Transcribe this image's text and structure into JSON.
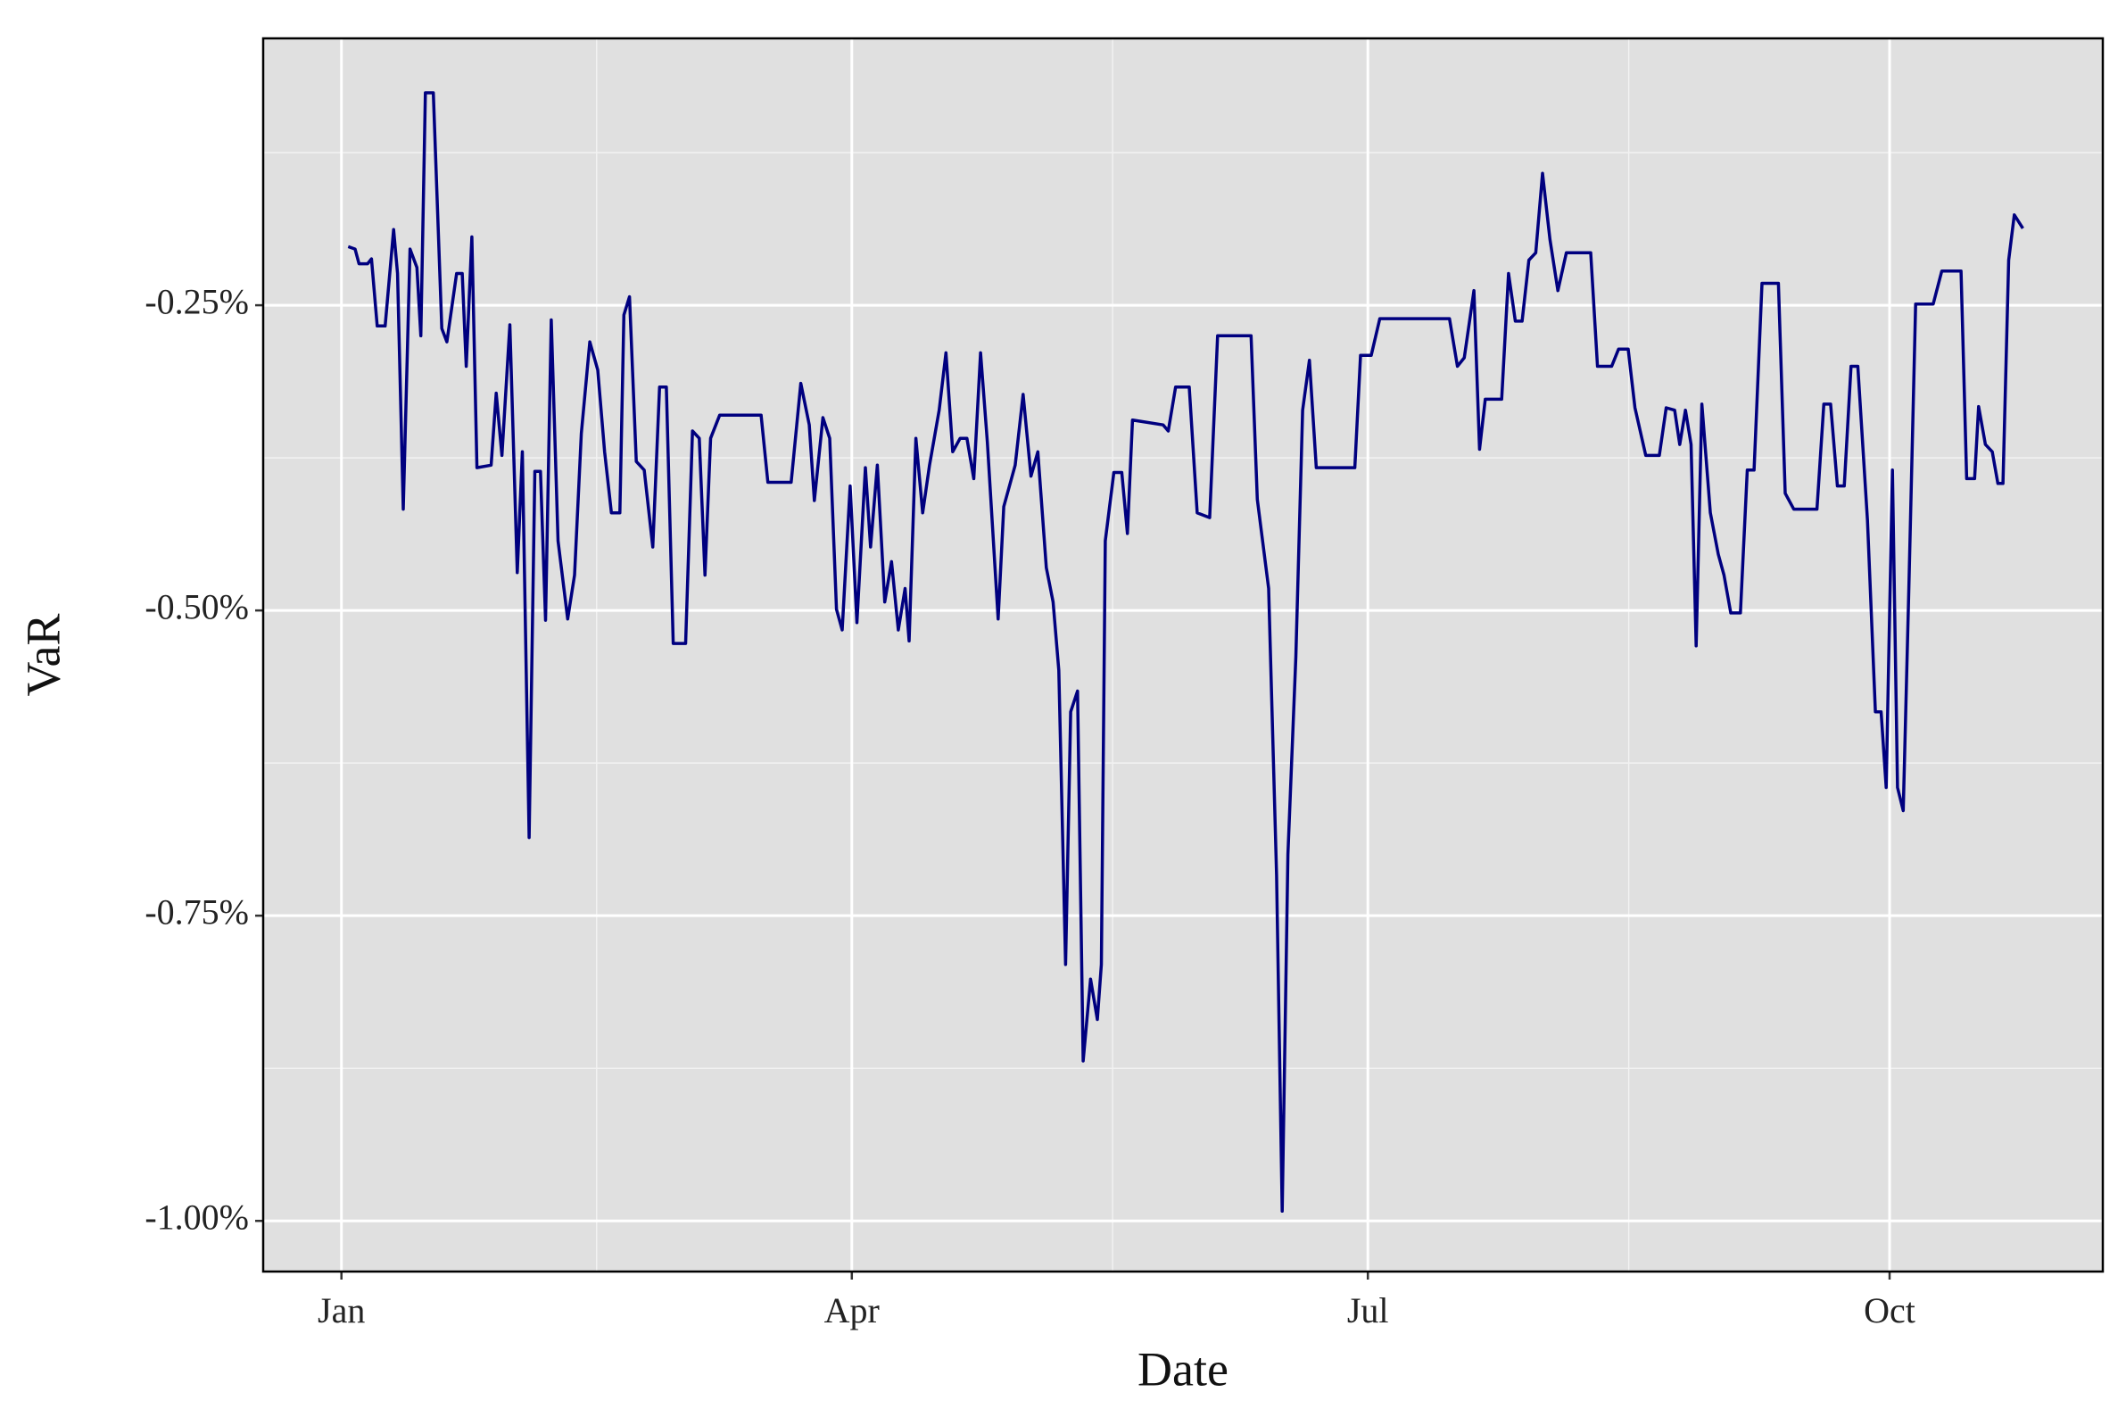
{
  "chart_data": {
    "type": "line",
    "xlabel": "Date",
    "ylabel": "VaR",
    "color": "#00007f",
    "background": "#e0e0e0",
    "grid": true,
    "xlim": [
      -13.8,
      310.6
    ],
    "xticks": [
      {
        "value": 0,
        "label": "Jan"
      },
      {
        "value": 90,
        "label": "Apr"
      },
      {
        "value": 181,
        "label": "Jul"
      },
      {
        "value": 273,
        "label": "Oct"
      }
    ],
    "xminorticks": [
      45,
      136,
      227
    ],
    "ylim": [
      -1.0415,
      -0.0314
    ],
    "yticks": [
      {
        "value": -1.0,
        "label": "-1.00%"
      },
      {
        "value": -0.75,
        "label": "-0.75%"
      },
      {
        "value": -0.5,
        "label": "-0.50%"
      },
      {
        "value": -0.25,
        "label": "-0.25%"
      }
    ],
    "yminorticks": [
      -0.875,
      -0.625,
      -0.375,
      -0.125
    ],
    "x": [
      1.2,
      2.4,
      3.1,
      4.6,
      5.3,
      6.3,
      7.7,
      9.2,
      9.9,
      10.9,
      12.1,
      13.3,
      14.0,
      14.8,
      16.2,
      17.7,
      18.6,
      20.3,
      21.3,
      22.0,
      23.0,
      23.9,
      26.4,
      27.3,
      28.3,
      29.7,
      31.0,
      31.9,
      33.1,
      34.1,
      35.1,
      36.0,
      37.0,
      38.2,
      39.9,
      41.1,
      42.3,
      43.8,
      45.2,
      46.4,
      47.6,
      49.1,
      49.8,
      50.8,
      52.0,
      53.4,
      54.9,
      56.1,
      57.3,
      58.5,
      60.7,
      61.9,
      63.1,
      64.1,
      65.1,
      66.7,
      74.0,
      75.2,
      79.3,
      81.0,
      82.5,
      83.4,
      84.9,
      86.1,
      87.3,
      88.3,
      89.7,
      90.9,
      92.4,
      93.3,
      94.5,
      95.8,
      97.0,
      98.2,
      99.4,
      100.1,
      101.3,
      102.5,
      103.7,
      105.4,
      106.6,
      107.8,
      109.1,
      110.3,
      111.5,
      112.7,
      113.9,
      115.8,
      116.8,
      118.8,
      120.2,
      121.6,
      122.8,
      124.3,
      125.5,
      126.5,
      127.7,
      128.6,
      129.8,
      130.8,
      132.1,
      133.3,
      134.0,
      134.7,
      136.2,
      137.6,
      138.6,
      139.5,
      144.9,
      145.8,
      147.1,
      149.5,
      150.9,
      153.1,
      154.5,
      160.4,
      161.5,
      163.5,
      164.9,
      165.9,
      166.9,
      168.3,
      169.5,
      170.7,
      171.9,
      178.7,
      179.7,
      181.6,
      183.1,
      195.4,
      196.8,
      198.0,
      199.7,
      200.7,
      201.7,
      204.6,
      205.8,
      207.0,
      208.2,
      209.4,
      210.6,
      211.8,
      213.1,
      214.5,
      216.0,
      220.3,
      221.5,
      224.0,
      225.2,
      226.9,
      228.1,
      230.0,
      232.4,
      233.6,
      235.1,
      236.0,
      237.0,
      238.0,
      238.9,
      239.9,
      241.4,
      242.8,
      243.8,
      245.0,
      246.7,
      247.9,
      249.1,
      250.5,
      253.4,
      254.6,
      256.1,
      260.2,
      261.4,
      262.6,
      263.8,
      265.0,
      266.2,
      267.4,
      269.1,
      270.5,
      271.5,
      272.4,
      273.5,
      274.4,
      275.4,
      276.4,
      277.6,
      280.7,
      282.2,
      285.6,
      286.6,
      288.0,
      288.7,
      289.9,
      291.1,
      292.1,
      293.0,
      294.0,
      295.0,
      296.5
    ],
    "values": [
      -0.202,
      -0.204,
      -0.216,
      -0.216,
      -0.212,
      -0.267,
      -0.267,
      -0.188,
      -0.224,
      -0.417,
      -0.204,
      -0.219,
      -0.275,
      -0.076,
      -0.076,
      -0.269,
      -0.28,
      -0.224,
      -0.224,
      -0.3,
      -0.194,
      -0.383,
      -0.381,
      -0.322,
      -0.373,
      -0.266,
      -0.469,
      -0.37,
      -0.686,
      -0.386,
      -0.386,
      -0.508,
      -0.262,
      -0.443,
      -0.507,
      -0.471,
      -0.355,
      -0.28,
      -0.303,
      -0.37,
      -0.42,
      -0.42,
      -0.258,
      -0.243,
      -0.378,
      -0.385,
      -0.448,
      -0.317,
      -0.317,
      -0.527,
      -0.527,
      -0.353,
      -0.359,
      -0.471,
      -0.359,
      -0.34,
      -0.34,
      -0.395,
      -0.395,
      -0.314,
      -0.348,
      -0.41,
      -0.342,
      -0.359,
      -0.499,
      -0.516,
      -0.398,
      -0.51,
      -0.383,
      -0.448,
      -0.381,
      -0.493,
      -0.46,
      -0.516,
      -0.482,
      -0.525,
      -0.359,
      -0.42,
      -0.381,
      -0.336,
      -0.289,
      -0.37,
      -0.359,
      -0.359,
      -0.392,
      -0.289,
      -0.362,
      -0.507,
      -0.415,
      -0.381,
      -0.323,
      -0.39,
      -0.37,
      -0.465,
      -0.493,
      -0.549,
      -0.79,
      -0.583,
      -0.566,
      -0.869,
      -0.802,
      -0.835,
      -0.79,
      -0.443,
      -0.387,
      -0.387,
      -0.437,
      -0.344,
      -0.348,
      -0.353,
      -0.317,
      -0.317,
      -0.42,
      -0.424,
      -0.275,
      -0.275,
      -0.409,
      -0.482,
      -0.717,
      -0.992,
      -0.7,
      -0.538,
      -0.336,
      -0.295,
      -0.383,
      -0.383,
      -0.291,
      -0.291,
      -0.261,
      -0.261,
      -0.3,
      -0.293,
      -0.238,
      -0.368,
      -0.327,
      -0.327,
      -0.224,
      -0.263,
      -0.263,
      -0.213,
      -0.207,
      -0.142,
      -0.196,
      -0.238,
      -0.207,
      -0.207,
      -0.3,
      -0.3,
      -0.286,
      -0.286,
      -0.334,
      -0.373,
      -0.373,
      -0.334,
      -0.336,
      -0.364,
      -0.336,
      -0.364,
      -0.529,
      -0.331,
      -0.42,
      -0.454,
      -0.471,
      -0.502,
      -0.502,
      -0.385,
      -0.385,
      -0.232,
      -0.232,
      -0.404,
      -0.417,
      -0.417,
      -0.331,
      -0.331,
      -0.398,
      -0.398,
      -0.3,
      -0.3,
      -0.426,
      -0.583,
      -0.583,
      -0.645,
      -0.385,
      -0.645,
      -0.664,
      -0.482,
      -0.249,
      -0.249,
      -0.222,
      -0.222,
      -0.392,
      -0.392,
      -0.333,
      -0.364,
      -0.37,
      -0.396,
      -0.396,
      -0.213,
      -0.176,
      -0.187
    ]
  }
}
